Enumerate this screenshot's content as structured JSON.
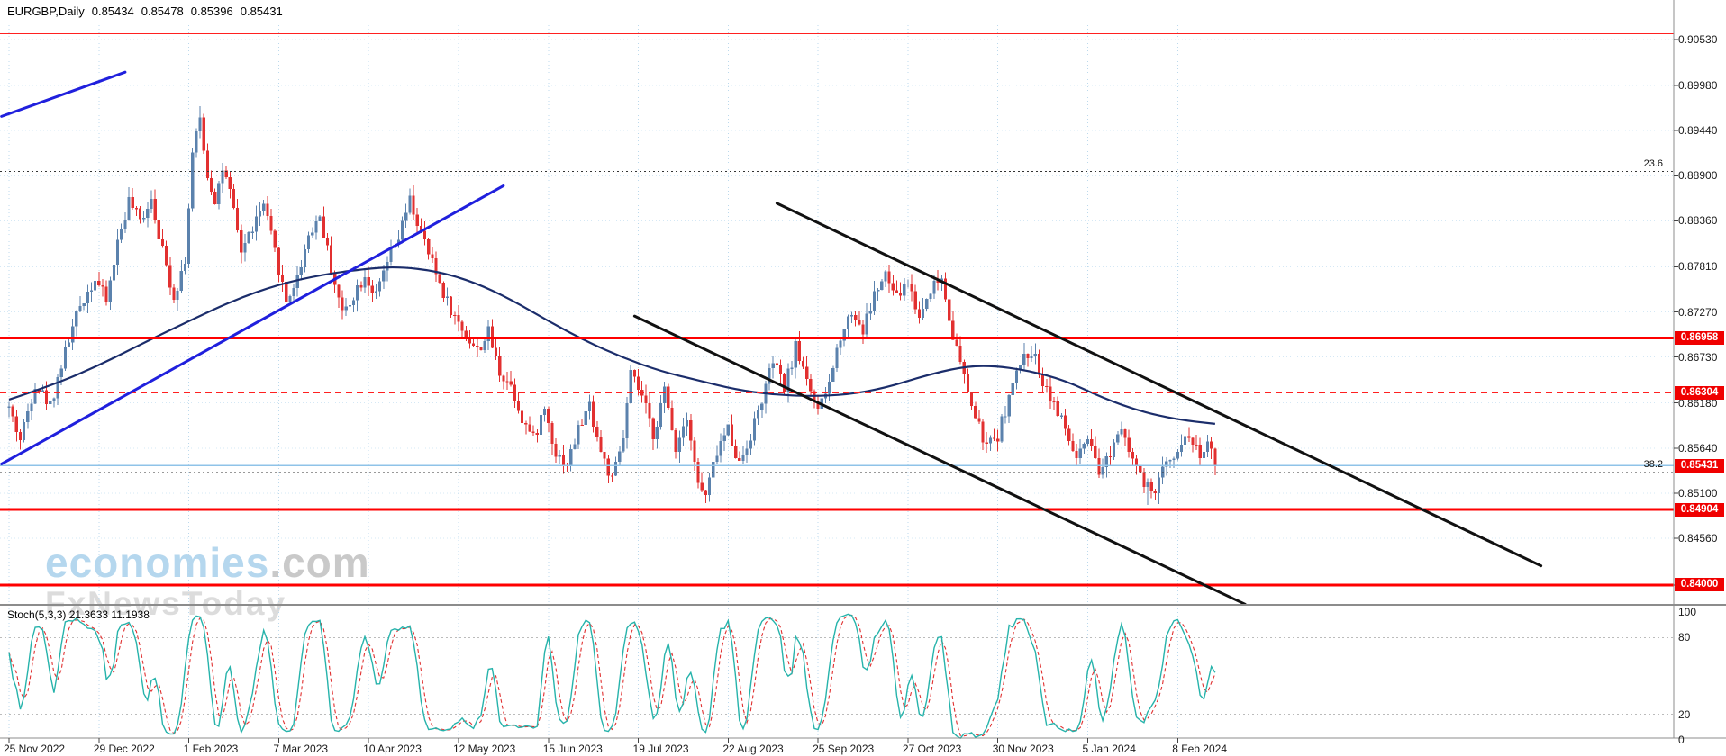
{
  "header": {
    "symbol": "EURGBP,Daily",
    "open": "0.85434",
    "high": "0.85478",
    "low": "0.85396",
    "close": "0.85431"
  },
  "watermark": {
    "brand": "economies",
    "brand_suffix": ".com",
    "subtitle": "FxNewsToday"
  },
  "colors": {
    "background": "#ffffff",
    "grid_vertical": "#bcd9ec",
    "grid_horizontal": "#d5e8f5",
    "candle_up": "#5b82ad",
    "candle_down": "#e23030",
    "ma": "#1b2d6b",
    "stoch_k": "#26b3ab",
    "stoch_d": "#e03030",
    "stoch_level": "#bbbbbb",
    "badge_bg": "#f00000",
    "badge_text": "#ffffff",
    "axis_text": "#1a1a1a",
    "separator": "#8c8c8c",
    "level_red": "#ff0000",
    "current_price_line": "#8fc3e8",
    "fib_line": "#333333",
    "trendline_blue": "#2020dd",
    "trendline_black": "#111111"
  },
  "price_axis": {
    "labels": [
      "0.90530",
      "0.89980",
      "0.89440",
      "0.88900",
      "0.88360",
      "0.87810",
      "0.87270",
      "0.86730",
      "0.86180",
      "0.85640",
      "0.85100",
      "0.84560",
      "0.84000"
    ]
  },
  "date_axis": {
    "labels": [
      "25 Nov 2022",
      "29 Dec 2022",
      "1 Feb 2023",
      "7 Mar 2023",
      "10 Apr 2023",
      "12 May 2023",
      "15 Jun 2023",
      "19 Jul 2023",
      "22 Aug 2023",
      "25 Sep 2023",
      "27 Oct 2023",
      "30 Nov 2023",
      "5 Jan 2024",
      "8 Feb 2024"
    ]
  },
  "stoch_panel": {
    "label": "Stoch(5,3,3) 21.3633 11.1938",
    "scale_labels": [
      "100",
      "80",
      "20",
      "0"
    ],
    "upper_level": 80,
    "lower_level": 20
  },
  "levels": {
    "horizontal_lines": [
      {
        "price": 0.906,
        "style": "solid",
        "width": 1.4,
        "color": "#ff2020",
        "badge": null
      },
      {
        "price": 0.86958,
        "style": "solid",
        "width": 2.6,
        "color": "#ff0000",
        "badge": "0.86958"
      },
      {
        "price": 0.86304,
        "style": "dashed",
        "width": 1.4,
        "color": "#ff2020",
        "badge": "0.86304"
      },
      {
        "price": 0.84904,
        "style": "solid",
        "width": 3.0,
        "color": "#ff0000",
        "badge": "0.84904"
      },
      {
        "price": 0.84,
        "style": "solid",
        "width": 3.0,
        "color": "#ff0000",
        "badge": "0.84000"
      },
      {
        "price": 0.85431,
        "style": "solid",
        "width": 1.4,
        "color": "#8fc3e8",
        "badge": null
      }
    ],
    "current_price": {
      "label": "0.85431",
      "price": 0.85431
    },
    "fibonacci": [
      {
        "label": "23.6",
        "price": 0.8895
      },
      {
        "label": "38.2",
        "price": 0.85346
      }
    ]
  },
  "trendlines": [
    {
      "name": "ascending-trendline",
      "color": "#2020dd",
      "width": 3,
      "b1": -2,
      "p1": 0.8545,
      "b2": 132,
      "p2": 0.8878
    },
    {
      "name": "ascending-trendline-upper",
      "color": "#2020dd",
      "width": 3,
      "b1": -2,
      "p1": 0.8961,
      "b2": 31,
      "p2": 0.9014
    },
    {
      "name": "descending-channel-upper",
      "color": "#111111",
      "width": 3,
      "b1": 205,
      "p1": 0.8857,
      "b2": 409,
      "p2": 0.8423
    },
    {
      "name": "descending-channel-lower",
      "color": "#111111",
      "width": 3,
      "b1": 167,
      "p1": 0.8722,
      "b2": 330,
      "p2": 0.8377
    }
  ],
  "chart_data": {
    "type": "candlestick",
    "symbol": "EURGBP",
    "timeframe": "Daily",
    "title": "EURGBP Daily candlestick chart with moving average, trendlines, horizontal support/resistance levels and Stochastic(5,3,3) sub-panel",
    "ohlc_current": {
      "open": 0.85434,
      "high": 0.85478,
      "low": 0.85396,
      "close": 0.85431
    },
    "price_range_visible": [
      0.8378,
      0.9068
    ],
    "bar_count": 323,
    "bars_per_tick": 24,
    "render_seed": 42,
    "close_waypoints": [
      [
        0,
        0.8612
      ],
      [
        3,
        0.8574
      ],
      [
        7,
        0.8642
      ],
      [
        11,
        0.8615
      ],
      [
        15,
        0.868
      ],
      [
        19,
        0.8735
      ],
      [
        23,
        0.8768
      ],
      [
        26,
        0.874
      ],
      [
        29,
        0.881
      ],
      [
        32,
        0.886
      ],
      [
        35,
        0.8835
      ],
      [
        38,
        0.8865
      ],
      [
        41,
        0.88
      ],
      [
        44,
        0.8745
      ],
      [
        47,
        0.879
      ],
      [
        49,
        0.8915
      ],
      [
        51,
        0.8958
      ],
      [
        53,
        0.889
      ],
      [
        55,
        0.8862
      ],
      [
        57,
        0.8898
      ],
      [
        59,
        0.8868
      ],
      [
        62,
        0.88
      ],
      [
        65,
        0.8828
      ],
      [
        68,
        0.8855
      ],
      [
        71,
        0.8798
      ],
      [
        74,
        0.874
      ],
      [
        77,
        0.8768
      ],
      [
        80,
        0.882
      ],
      [
        83,
        0.8842
      ],
      [
        86,
        0.878
      ],
      [
        89,
        0.8725
      ],
      [
        92,
        0.8748
      ],
      [
        95,
        0.8772
      ],
      [
        98,
        0.8745
      ],
      [
        101,
        0.8786
      ],
      [
        104,
        0.8815
      ],
      [
        107,
        0.886
      ],
      [
        110,
        0.882
      ],
      [
        113,
        0.8785
      ],
      [
        116,
        0.875
      ],
      [
        119,
        0.872
      ],
      [
        122,
        0.87
      ],
      [
        125,
        0.868
      ],
      [
        128,
        0.8702
      ],
      [
        131,
        0.8655
      ],
      [
        134,
        0.864
      ],
      [
        137,
        0.86
      ],
      [
        140,
        0.8575
      ],
      [
        143,
        0.8612
      ],
      [
        146,
        0.8558
      ],
      [
        149,
        0.8545
      ],
      [
        152,
        0.8586
      ],
      [
        155,
        0.8615
      ],
      [
        158,
        0.856
      ],
      [
        161,
        0.8524
      ],
      [
        164,
        0.8576
      ],
      [
        166,
        0.8652
      ],
      [
        169,
        0.8625
      ],
      [
        172,
        0.858
      ],
      [
        175,
        0.8632
      ],
      [
        178,
        0.8565
      ],
      [
        181,
        0.8605
      ],
      [
        184,
        0.852
      ],
      [
        186,
        0.8506
      ],
      [
        189,
        0.856
      ],
      [
        192,
        0.8588
      ],
      [
        195,
        0.8545
      ],
      [
        198,
        0.858
      ],
      [
        201,
        0.8622
      ],
      [
        204,
        0.8668
      ],
      [
        207,
        0.8635
      ],
      [
        210,
        0.8684
      ],
      [
        213,
        0.865
      ],
      [
        216,
        0.8605
      ],
      [
        219,
        0.8642
      ],
      [
        222,
        0.87
      ],
      [
        225,
        0.8728
      ],
      [
        228,
        0.8705
      ],
      [
        231,
        0.8748
      ],
      [
        234,
        0.877
      ],
      [
        237,
        0.8744
      ],
      [
        240,
        0.8764
      ],
      [
        243,
        0.872
      ],
      [
        246,
        0.8756
      ],
      [
        249,
        0.8768
      ],
      [
        252,
        0.87
      ],
      [
        255,
        0.8648
      ],
      [
        258,
        0.86
      ],
      [
        261,
        0.8565
      ],
      [
        264,
        0.858
      ],
      [
        267,
        0.8625
      ],
      [
        270,
        0.8665
      ],
      [
        273,
        0.8682
      ],
      [
        276,
        0.8645
      ],
      [
        279,
        0.8618
      ],
      [
        282,
        0.8585
      ],
      [
        285,
        0.855
      ],
      [
        288,
        0.8572
      ],
      [
        291,
        0.8532
      ],
      [
        294,
        0.856
      ],
      [
        297,
        0.8594
      ],
      [
        300,
        0.8552
      ],
      [
        303,
        0.8518
      ],
      [
        306,
        0.8512
      ],
      [
        309,
        0.8548
      ],
      [
        312,
        0.8565
      ],
      [
        315,
        0.858
      ],
      [
        318,
        0.8556
      ],
      [
        320,
        0.857
      ],
      [
        322,
        0.85431
      ]
    ],
    "extreme_points": [
      {
        "bar": 51,
        "type": "high",
        "price": 0.8973
      },
      {
        "bar": 186,
        "type": "low",
        "price": 0.8498
      },
      {
        "bar": 304,
        "type": "low",
        "price": 0.8496
      }
    ],
    "moving_average": {
      "points": [
        [
          0,
          0.8622
        ],
        [
          12,
          0.864
        ],
        [
          24,
          0.8663
        ],
        [
          36,
          0.869
        ],
        [
          48,
          0.8716
        ],
        [
          60,
          0.8741
        ],
        [
          72,
          0.876
        ],
        [
          84,
          0.8772
        ],
        [
          96,
          0.8779
        ],
        [
          104,
          0.8781
        ],
        [
          114,
          0.8776
        ],
        [
          124,
          0.8763
        ],
        [
          134,
          0.8742
        ],
        [
          144,
          0.8716
        ],
        [
          154,
          0.8692
        ],
        [
          164,
          0.8672
        ],
        [
          174,
          0.8656
        ],
        [
          184,
          0.8645
        ],
        [
          194,
          0.8634
        ],
        [
          204,
          0.8628
        ],
        [
          214,
          0.8626
        ],
        [
          224,
          0.8628
        ],
        [
          234,
          0.8636
        ],
        [
          244,
          0.865
        ],
        [
          254,
          0.8661
        ],
        [
          262,
          0.8663
        ],
        [
          272,
          0.8657
        ],
        [
          282,
          0.8645
        ],
        [
          292,
          0.8624
        ],
        [
          302,
          0.8608
        ],
        [
          312,
          0.8598
        ],
        [
          322,
          0.8593
        ]
      ]
    },
    "stochastic": {
      "k_period": 5,
      "k_smooth": 3,
      "d_period": 3,
      "range": [
        0,
        100
      ],
      "levels": [
        80,
        20
      ]
    }
  }
}
